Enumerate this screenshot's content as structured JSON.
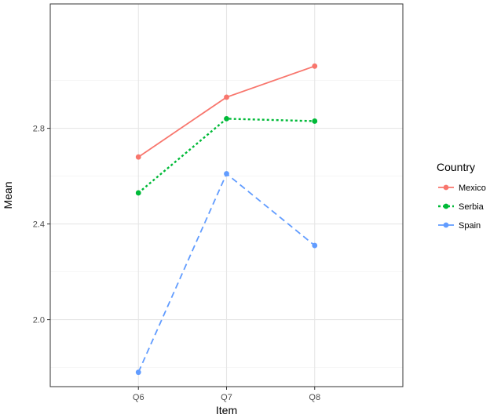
{
  "chart_data": {
    "type": "line",
    "title": "",
    "xlabel": "Item",
    "ylabel": "Mean",
    "categories": [
      "Q6",
      "Q7",
      "Q8"
    ],
    "ylim": [
      1.72,
      3.32
    ],
    "yticks": [
      2.0,
      2.4,
      2.8
    ],
    "ytick_labels": [
      "2.0",
      "2.4",
      "2.8"
    ],
    "grid": true,
    "legend": {
      "title": "Country",
      "position": "right"
    },
    "series": [
      {
        "name": "Mexico",
        "values": [
          2.68,
          2.93,
          3.06
        ],
        "color": "#F8766D",
        "linestyle": "solid"
      },
      {
        "name": "Serbia",
        "values": [
          2.53,
          2.84,
          2.83
        ],
        "color": "#00BA38",
        "linestyle": "dotted"
      },
      {
        "name": "Spain",
        "values": [
          1.78,
          2.61,
          2.31
        ],
        "color": "#619CFF",
        "linestyle": "dashed"
      }
    ]
  }
}
